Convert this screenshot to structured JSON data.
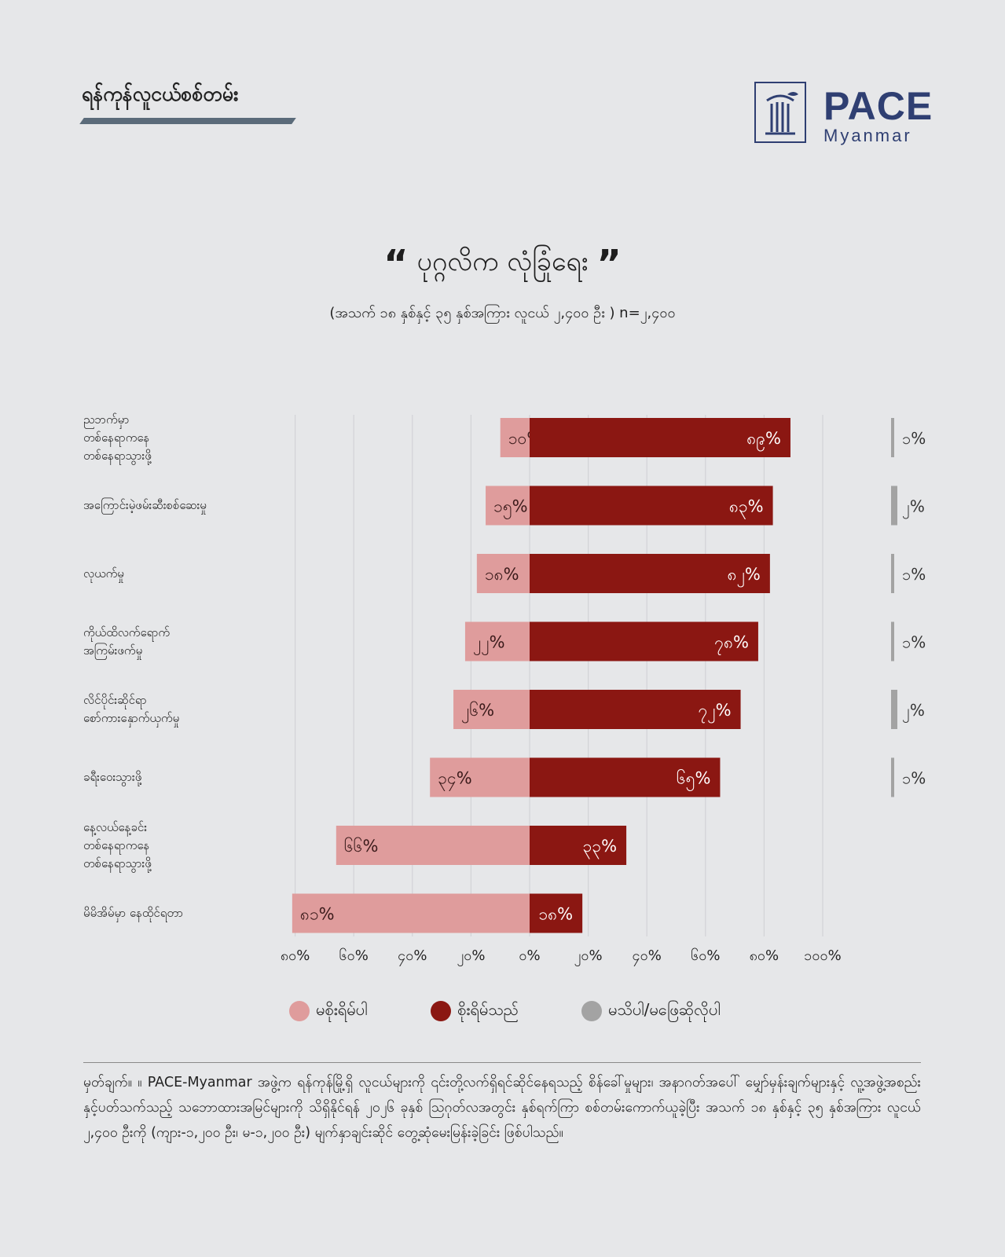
{
  "header": {
    "title": "ရန်ကုန်လူငယ်စစ်တမ်း",
    "logo_main": "PACE",
    "logo_sub": "Myanmar"
  },
  "chart_data": {
    "type": "bar",
    "title": "ပုဂ္ဂလိက လုံခြုံရေး",
    "subtitle": "(အသက် ၁၈ နှစ်နှင့် ၃၅ နှစ်အကြား လူငယ် ၂,၄၀၀ ဦး ) n=၂,၄၀၀",
    "orientation": "horizontal-diverging",
    "categories": [
      [
        "ညဘက်မှာ",
        "တစ်နေရာကနေ",
        "တစ်နေရာသွားဖို့"
      ],
      [
        "အကြောင်းမဲ့ဖမ်းဆီးစစ်ဆေးမှု"
      ],
      [
        "လုယက်မှု"
      ],
      [
        "ကိုယ်ထိလက်ရောက်",
        "အကြမ်းဖက်မှု"
      ],
      [
        "လိင်ပိုင်းဆိုင်ရာ",
        "စော်ကားနှောက်ယှက်မှု"
      ],
      [
        "ခရီးဝေးသွားဖို့"
      ],
      [
        "နေ့လယ်နေ့ခင်း",
        "တစ်နေရာကနေ",
        "တစ်နေရာသွားဖို့"
      ],
      [
        "မိမိအိမ်မှာ နေထိုင်ရတာ"
      ]
    ],
    "series": [
      {
        "name": "မစိုးရိမ်ပါ",
        "values": [
          10,
          15,
          18,
          22,
          26,
          34,
          66,
          81
        ],
        "labels": [
          "၁၀%",
          "၁၅%",
          "၁၈%",
          "၂၂%",
          "၂၆%",
          "၃၄%",
          "၆၆%",
          "၈၁%"
        ]
      },
      {
        "name": "စိုးရိမ်သည်",
        "values": [
          89,
          83,
          82,
          78,
          72,
          65,
          33,
          18
        ],
        "labels": [
          "၈၉%",
          "၈၃%",
          "၈၂%",
          "၇၈%",
          "၇၂%",
          "၆၅%",
          "၃၃%",
          "၁၈%"
        ]
      },
      {
        "name": "မသိပါ/မဖြေဆိုလိုပါ",
        "values": [
          1,
          2,
          1,
          1,
          2,
          1,
          null,
          null
        ],
        "labels": [
          "၁%",
          "၂%",
          "၁%",
          "၁%",
          "၂%",
          "၁%",
          "",
          ""
        ]
      }
    ],
    "xlim": [
      -80,
      100
    ],
    "ticks": [
      -80,
      -60,
      -40,
      -20,
      0,
      20,
      40,
      60,
      80,
      100
    ],
    "tick_labels": [
      "၈၀%",
      "၆၀%",
      "၄၀%",
      "၂၀%",
      "၀%",
      "၂၀%",
      "၄၀%",
      "၆၀%",
      "၈၀%",
      "၁၀၀%"
    ],
    "colors": {
      "not_worried": "#df9c9c",
      "worried": "#8b1712",
      "dont_know": "#a3a3a3"
    },
    "grid": true,
    "legend_position": "bottom"
  },
  "note": "မှတ်ချက်။ ။ PACE-Myanmar အဖွဲ့က ရန်ကုန်မြို့ရှိ လူငယ်များကို ၎င်းတို့လက်ရှိရင်ဆိုင်နေရသည့် စိန်ခေါ်မှုများ၊ အနာဂတ်အပေါ် မျှော်မှန်းချက်များနှင့် လူ့အဖွဲ့အစည်းနှင့်ပတ်သက်သည့် သဘောထားအမြင်များကို သိရှိနိုင်ရန် ၂၀၂၆ ခုနှစ် ဩဂုတ်လအတွင်း နှစ်ရက်ကြာ စစ်တမ်းကောက်ယူခဲ့ပြီး အသက် ၁၈ နှစ်နှင့် ၃၅ နှစ်အကြား လူငယ် ၂,၄၀၀ ဦးကို (ကျား-၁,၂၀၀ ဦး၊ မ-၁,၂၀၀ ဦး) မျက်နှာချင်းဆိုင် တွေ့ဆုံမေးမြန်းခဲ့ခြင်း ဖြစ်ပါသည်။"
}
